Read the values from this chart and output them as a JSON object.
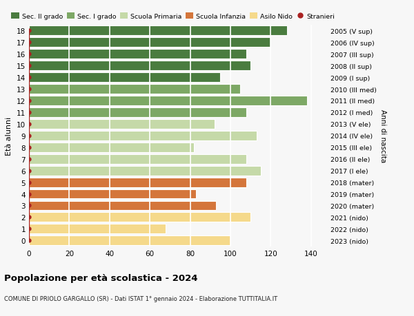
{
  "ages": [
    0,
    1,
    2,
    3,
    4,
    5,
    6,
    7,
    8,
    9,
    10,
    11,
    12,
    13,
    14,
    15,
    16,
    17,
    18
  ],
  "values": [
    100,
    68,
    110,
    93,
    83,
    108,
    115,
    108,
    82,
    113,
    92,
    108,
    138,
    105,
    95,
    110,
    108,
    120,
    128
  ],
  "right_labels": [
    "2023 (nido)",
    "2022 (nido)",
    "2021 (nido)",
    "2020 (mater)",
    "2019 (mater)",
    "2018 (mater)",
    "2017 (I ele)",
    "2016 (II ele)",
    "2015 (III ele)",
    "2014 (IV ele)",
    "2013 (V ele)",
    "2012 (I med)",
    "2011 (II med)",
    "2010 (III med)",
    "2009 (I sup)",
    "2008 (II sup)",
    "2007 (III sup)",
    "2006 (IV sup)",
    "2005 (V sup)"
  ],
  "stranieri": [
    2,
    5,
    5,
    8,
    4,
    8,
    6,
    6,
    3,
    7,
    4,
    7,
    6,
    7,
    5,
    5,
    5,
    6,
    3
  ],
  "bar_colors": {
    "sec2": "#4a7c3f",
    "sec1": "#7da865",
    "primaria": "#c5d9a8",
    "infanzia": "#d4763b",
    "nido": "#f5d98b"
  },
  "color_map": [
    "nido",
    "nido",
    "nido",
    "infanzia",
    "infanzia",
    "infanzia",
    "primaria",
    "primaria",
    "primaria",
    "primaria",
    "primaria",
    "sec1",
    "sec1",
    "sec1",
    "sec2",
    "sec2",
    "sec2",
    "sec2",
    "sec2"
  ],
  "legend_labels": [
    "Sec. II grado",
    "Sec. I grado",
    "Scuola Primaria",
    "Scuola Infanzia",
    "Asilo Nido",
    "Stranieri"
  ],
  "legend_colors": [
    "#4a7c3f",
    "#7da865",
    "#c5d9a8",
    "#d4763b",
    "#f5d98b",
    "#aa2222"
  ],
  "ylabel": "Età alunni",
  "right_ylabel": "Anni di nascita",
  "title": "Popolazione per età scolastica - 2024",
  "subtitle": "COMUNE DI PRIOLO GARGALLO (SR) - Dati ISTAT 1° gennaio 2024 - Elaborazione TUTTITALIA.IT",
  "xlim": [
    0,
    148
  ],
  "background_color": "#f7f7f7"
}
